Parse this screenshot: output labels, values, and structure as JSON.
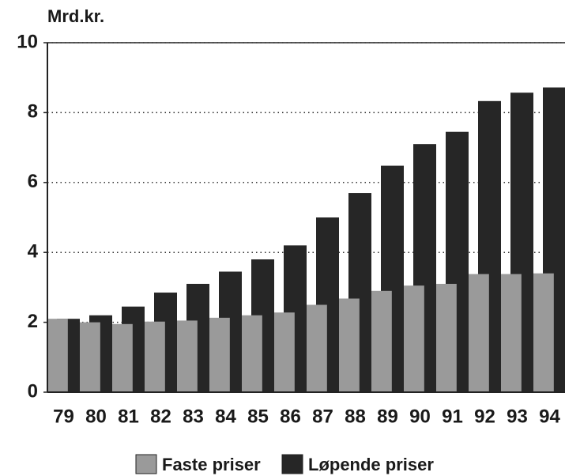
{
  "chart_data": {
    "type": "bar",
    "y_axis_label": "Mrd.kr.",
    "categories": [
      "79",
      "80",
      "81",
      "82",
      "83",
      "84",
      "85",
      "86",
      "87",
      "88",
      "89",
      "90",
      "91",
      "92",
      "93",
      "94"
    ],
    "series": [
      {
        "name": "Faste priser",
        "color": "#9a9a9a",
        "values": [
          2.1,
          2.0,
          1.95,
          2.02,
          2.05,
          2.13,
          2.2,
          2.28,
          2.5,
          2.68,
          2.9,
          3.05,
          3.1,
          3.38,
          3.38,
          3.4
        ]
      },
      {
        "name": "Løpende priser",
        "color": "#262626",
        "values": [
          2.1,
          2.2,
          2.45,
          2.85,
          3.1,
          3.45,
          3.8,
          4.2,
          5.0,
          5.7,
          6.48,
          7.1,
          7.45,
          8.33,
          8.57,
          8.72
        ]
      }
    ],
    "ylim": [
      0,
      10
    ],
    "yticks": [
      0,
      2,
      4,
      6,
      8,
      10
    ],
    "grid": true
  }
}
